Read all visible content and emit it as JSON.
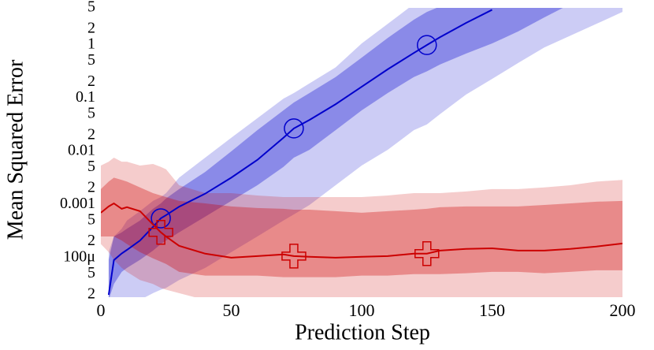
{
  "chart_data": {
    "type": "line",
    "xlabel": "Prediction Step",
    "ylabel": "Mean Squared Error",
    "yscale": "log",
    "grid": false,
    "xlim": [
      0,
      200
    ],
    "ylim": [
      2e-05,
      5
    ],
    "xticks": [
      0,
      50,
      100,
      150,
      200
    ],
    "yticks": [
      5,
      2,
      1,
      {
        "value": 0.5,
        "label": "5"
      },
      {
        "value": 0.2,
        "label": "2"
      },
      0.1,
      {
        "value": 0.05,
        "label": "5"
      },
      {
        "value": 0.02,
        "label": "2"
      },
      0.01,
      {
        "value": 0.005,
        "label": "5"
      },
      {
        "value": 0.002,
        "label": "2"
      },
      0.001,
      {
        "value": 0.0005,
        "label": "5"
      },
      {
        "value": 0.0002,
        "label": "2"
      },
      {
        "value": 0.0001,
        "label": "100μ"
      },
      {
        "value": 5e-05,
        "label": "5"
      },
      {
        "value": 2e-05,
        "label": "2"
      }
    ],
    "x": [
      0,
      3,
      5,
      8,
      10,
      15,
      20,
      23,
      25,
      30,
      40,
      50,
      60,
      70,
      74,
      80,
      90,
      100,
      110,
      120,
      125,
      130,
      140,
      150,
      160,
      170,
      180,
      190,
      200
    ],
    "series": [
      {
        "color": "#0000cc",
        "marker": "circle",
        "marker_x": [
          23,
          74,
          125
        ],
        "values": [
          null,
          2e-05,
          9e-05,
          0.00012,
          0.00014,
          0.00021,
          0.00038,
          0.00055,
          0.00063,
          0.00091,
          0.0016,
          0.0032,
          0.0069,
          0.018,
          0.027,
          0.039,
          0.077,
          0.164,
          0.35,
          0.71,
          1.0,
          1.4,
          2.6,
          4.6,
          null,
          null,
          null,
          null,
          null
        ],
        "inner_upper": [
          null,
          9.1e-05,
          0.00025,
          0.0003,
          0.00035,
          0.0005,
          0.00083,
          0.00105,
          0.0013,
          0.00195,
          0.0041,
          0.01,
          0.025,
          0.059,
          0.083,
          0.125,
          0.25,
          0.58,
          1.36,
          3.0,
          4.2,
          5.3,
          9.2,
          16,
          29,
          54,
          100,
          178,
          316
        ],
        "inner_lower": [
          null,
          1.6e-05,
          3.2e-05,
          5.4e-05,
          6.4e-05,
          9.1e-05,
          0.000136,
          0.00018,
          0.00021,
          0.0003,
          0.00059,
          0.00117,
          0.0023,
          0.0051,
          0.0076,
          0.0107,
          0.025,
          0.059,
          0.125,
          0.25,
          0.32,
          0.43,
          0.69,
          1.07,
          1.8,
          3.3,
          5.9,
          9.8,
          16
        ],
        "outer_upper": [
          null,
          0.000127,
          0.00025,
          0.00035,
          0.0005,
          0.00075,
          0.00117,
          0.00138,
          0.00164,
          0.0032,
          0.0076,
          0.018,
          0.042,
          0.098,
          0.125,
          0.19,
          0.38,
          1.07,
          2.5,
          5.9,
          8.3,
          11.7,
          23,
          46,
          90,
          179,
          353,
          698,
          1380
        ],
        "outer_lower": [
          null,
          8.3e-06,
          9.8e-06,
          1.17e-05,
          1.38e-05,
          1.6e-05,
          2.15e-05,
          2.5e-05,
          2.7e-05,
          3.8e-05,
          6.4e-05,
          0.000127,
          0.00025,
          0.0005,
          0.00065,
          0.00098,
          0.0023,
          0.0054,
          0.0107,
          0.025,
          0.032,
          0.05,
          0.117,
          0.23,
          0.46,
          0.9,
          1.5,
          2.5,
          4.2
        ]
      },
      {
        "color": "#cc0000",
        "marker": "plus",
        "marker_x": [
          23,
          74,
          125
        ],
        "values": [
          0.0007,
          0.00092,
          0.00105,
          0.00083,
          0.00089,
          0.00075,
          0.00042,
          0.0003,
          0.00025,
          0.000167,
          0.000119,
          0.0001,
          0.000107,
          0.000115,
          0.000107,
          0.000104,
          0.0001,
          0.000104,
          0.000107,
          0.000119,
          0.000119,
          0.000136,
          0.000146,
          0.00015,
          0.000136,
          0.000136,
          0.000146,
          0.000162,
          0.000185
        ],
        "inner_upper": [
          0.00195,
          0.0027,
          0.0032,
          0.0029,
          0.0027,
          0.0021,
          0.00164,
          0.00148,
          0.00138,
          0.00117,
          0.00105,
          0.00092,
          0.00086,
          0.00083,
          0.0008,
          0.0008,
          0.00075,
          0.0007,
          0.00075,
          0.0008,
          0.00083,
          0.00089,
          0.00092,
          0.00092,
          0.00092,
          0.00098,
          0.00105,
          0.00113,
          0.00117
        ],
        "inner_lower": [
          0.00025,
          0.00025,
          0.00025,
          0.00021,
          0.00018,
          0.000127,
          9.7e-05,
          8.4e-05,
          7.6e-05,
          5.4e-05,
          4.6e-05,
          4.6e-05,
          4.6e-05,
          4.3e-05,
          4.3e-05,
          4.3e-05,
          4.3e-05,
          4.6e-05,
          4.6e-05,
          4.9e-05,
          4.9e-05,
          4.9e-05,
          5.1e-05,
          5.4e-05,
          5.4e-05,
          5.1e-05,
          5.4e-05,
          5.8e-05,
          5.8e-05
        ],
        "outer_upper": [
          0.0054,
          0.0064,
          0.0076,
          0.0064,
          0.0064,
          0.0054,
          0.0058,
          0.0051,
          0.0046,
          0.0023,
          0.00164,
          0.00164,
          0.00148,
          0.00138,
          0.00138,
          0.00138,
          0.00138,
          0.00138,
          0.00148,
          0.00164,
          0.00164,
          0.00164,
          0.00176,
          0.00195,
          0.00195,
          0.0021,
          0.0023,
          0.0027,
          0.0029
        ],
        "outer_lower": [
          0.00018,
          0.000127,
          9.1e-05,
          6.4e-05,
          5.4e-05,
          3.8e-05,
          3.2e-05,
          2.7e-05,
          2.5e-05,
          2.15e-05,
          1.6e-05,
          1.38e-05,
          1.25e-05,
          1.25e-05,
          1.25e-05,
          1.25e-05,
          1.25e-05,
          1.25e-05,
          1.25e-05,
          1.25e-05,
          1.25e-05,
          1.25e-05,
          1.25e-05,
          1.25e-05,
          1.25e-05,
          1.25e-05,
          1.25e-05,
          1.25e-05,
          1.38e-05
        ]
      }
    ]
  }
}
